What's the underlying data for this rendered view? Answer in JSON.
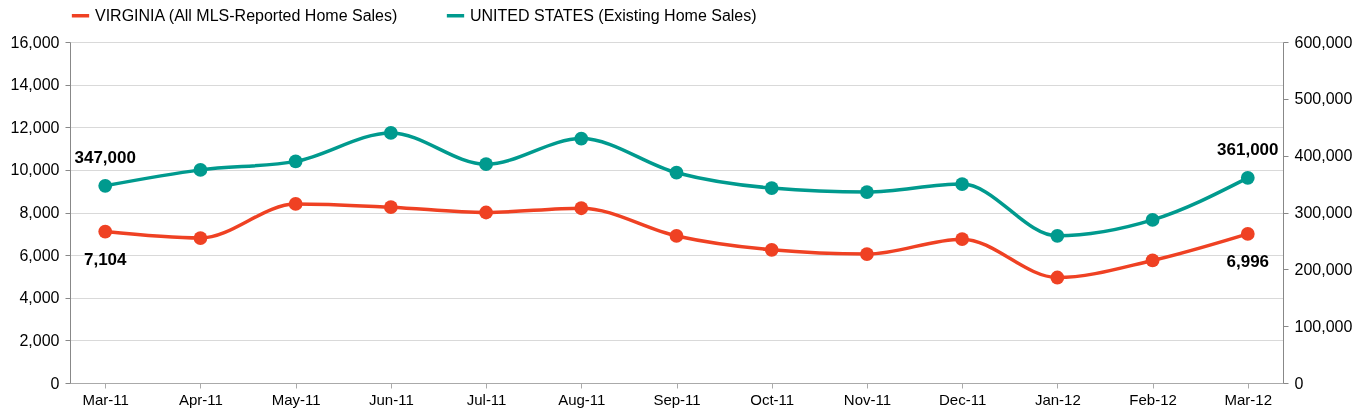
{
  "chart_data": {
    "type": "line",
    "categories": [
      "Mar-11",
      "Apr-11",
      "May-11",
      "Jun-11",
      "Jul-11",
      "Aug-11",
      "Sep-11",
      "Oct-11",
      "Nov-11",
      "Dec-11",
      "Jan-12",
      "Feb-12",
      "Mar-12"
    ],
    "series": [
      {
        "name": "VIRGINIA (All MLS-Reported Home Sales)",
        "color": "#ef4123",
        "values": [
          7104,
          6800,
          8400,
          8250,
          8000,
          8200,
          6900,
          6250,
          6050,
          6750,
          4950,
          5750,
          6996
        ],
        "value_labels": [
          "7,104",
          null,
          null,
          null,
          null,
          null,
          null,
          null,
          null,
          null,
          null,
          null,
          "6,996"
        ]
      },
      {
        "name": "UNITED STATES (Existing Home Sales)",
        "color": "#009a8e",
        "axis": "y2",
        "values": [
          347000,
          375000,
          390000,
          440000,
          385000,
          430000,
          370000,
          343000,
          336000,
          350000,
          259000,
          287000,
          361000
        ],
        "value_labels": [
          "347,000",
          null,
          null,
          null,
          null,
          null,
          null,
          null,
          null,
          null,
          null,
          null,
          "361,000"
        ]
      }
    ],
    "ylim": [
      0,
      16000
    ],
    "yticks": [
      0,
      {
        "value": 2000,
        "label": "2,000"
      },
      {
        "value": 4000,
        "label": "4,000"
      },
      {
        "value": 6000,
        "label": "6,000"
      },
      {
        "value": 8000,
        "label": "8,000"
      },
      {
        "value": 10000,
        "label": "10,000"
      },
      {
        "value": 12000,
        "label": "12,000"
      },
      {
        "value": 14000,
        "label": "14,000"
      },
      {
        "value": 16000,
        "label": "16,000"
      }
    ],
    "y2lim": [
      0,
      600000
    ],
    "y2ticks": [
      0,
      {
        "value": 100000,
        "label": "100,000"
      },
      {
        "value": 200000,
        "label": "200,000"
      },
      {
        "value": 300000,
        "label": "300,000"
      },
      {
        "value": 400000,
        "label": "400,000"
      },
      {
        "value": 500000,
        "label": "500,000"
      },
      {
        "value": 600000,
        "label": "600,000"
      }
    ],
    "grid": "y",
    "legend": "top",
    "marker": "circle",
    "line_style": "solid"
  }
}
